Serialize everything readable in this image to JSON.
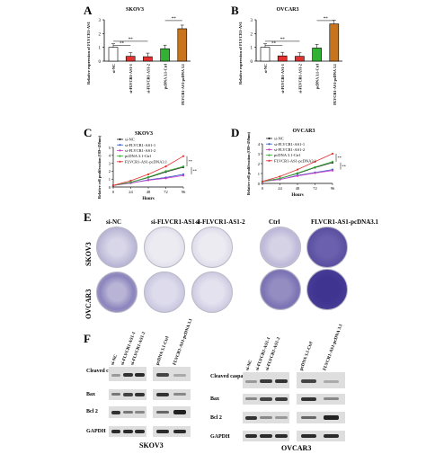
{
  "panels": {
    "A": {
      "letter": "A",
      "title": "SKOV3",
      "ylabel": "Relative expression of FLVCR1-AS1",
      "yticks": [
        "0",
        "1",
        "2",
        "3"
      ],
      "sig": [
        "**",
        "**",
        "**"
      ],
      "categories": [
        "si-NC",
        "si-FLVCR1-AS1-1",
        "si-FLVCR1-AS1-2",
        "pcDNA 3.1-Ctrl",
        "FLVCR1-AS1-pcDNA 3.1"
      ]
    },
    "B": {
      "letter": "B",
      "title": "OVCAR3",
      "ylabel": "Relative expression of FLVCR1-AS1",
      "yticks": [
        "0",
        "1",
        "2",
        "3"
      ],
      "sig": [
        "**",
        "**",
        "**"
      ],
      "categories": [
        "si-NC",
        "si-FLVCR1-AS1-1",
        "si-FLVCR1-AS1-2",
        "pcDNA 3.1-Ctrl",
        "FLVCR1-AS1-pcDNA 3.1"
      ]
    },
    "C": {
      "letter": "C",
      "title": "SKOV3",
      "ylabel": "Relative cell proliferation (OD=450nm)",
      "xlabel": "Hours",
      "yticks": [
        "0",
        "1",
        "2",
        "3",
        "4",
        "5"
      ],
      "xticks": [
        "0",
        "24",
        "48",
        "72",
        "96"
      ],
      "sig": [
        "**",
        "**"
      ],
      "legend": [
        "si-NC",
        "si-FLVCR1-AS1-1",
        "si-FLVCR1-AS1-2",
        "pcDNA 3.1-Ctrl",
        "FLVCR1-AS1-pcDNA3.1"
      ]
    },
    "D": {
      "letter": "D",
      "title": "OVCAR3",
      "ylabel": "Relative cell proliferation (OD=450nm)",
      "xlabel": "Hours",
      "yticks": [
        "0",
        "1",
        "2",
        "3",
        "4"
      ],
      "xticks": [
        "0",
        "24",
        "48",
        "72",
        "96"
      ],
      "sig": [
        "**",
        "**"
      ],
      "legend": [
        "si-NC",
        "si-FLVCR1-AS1-1",
        "si-FLVCR1-AS1-2",
        "pcDNA 3.1-Ctrl",
        "FLVCR1-AS1-pcDNA3.1"
      ]
    },
    "E": {
      "letter": "E",
      "cols": [
        "si-NC",
        "si-FLVCR1-AS1-1",
        "si-FLVCR1-AS1-2",
        "Ctrl",
        "FLVCR1-AS1-pcDNA3.1"
      ],
      "rows": [
        "SKOV3",
        "OVCAR3"
      ]
    },
    "F": {
      "letter": "F",
      "rows": [
        "Cleaved caspase 3",
        "Bax",
        "Bcl 2",
        "GAPDH"
      ],
      "lanes_left": [
        "si-NC",
        "si-FLVCR1-AS1-1",
        "si-FLVCR1-AS1-2"
      ],
      "lanes_right": [
        "pcDNA 3.1-Ctrl",
        "FLVCR1-AS1-pcDNA 3.1"
      ],
      "cell_lines": [
        "SKOV3",
        "OVCAR3"
      ]
    }
  },
  "colors": {
    "si-NC": "#ffffff",
    "si1": "#e53030",
    "si2": "#e53030",
    "ctrl": "#33b133",
    "oe": "#c8741c",
    "dish": "#5a4fa0"
  },
  "chart_data": [
    {
      "type": "bar",
      "title": "SKOV3",
      "ylabel": "Relative expression of FLVCR1-AS1",
      "ylim": [
        0,
        3
      ],
      "categories": [
        "si-NC",
        "si-FLVCR1-AS1-1",
        "si-FLVCR1-AS1-2",
        "pcDNA 3.1-Ctrl",
        "FLVCR1-AS1-pcDNA 3.1"
      ],
      "values": [
        1.0,
        0.35,
        0.32,
        0.9,
        2.35
      ]
    },
    {
      "type": "bar",
      "title": "OVCAR3",
      "ylabel": "Relative expression of FLVCR1-AS1",
      "ylim": [
        0,
        3
      ],
      "categories": [
        "si-NC",
        "si-FLVCR1-AS1-1",
        "si-FLVCR1-AS1-2",
        "pcDNA 3.1-Ctrl",
        "FLVCR1-AS1-pcDNA 3.1"
      ],
      "values": [
        1.0,
        0.38,
        0.35,
        0.95,
        2.7
      ]
    },
    {
      "type": "line",
      "title": "SKOV3",
      "xlabel": "Hours",
      "ylabel": "Relative cell proliferation (OD=450nm)",
      "x": [
        0,
        24,
        48,
        72,
        96
      ],
      "ylim": [
        0,
        5
      ],
      "series": [
        {
          "name": "si-NC",
          "values": [
            0.2,
            0.6,
            1.2,
            1.9,
            2.5
          ]
        },
        {
          "name": "si-FLVCR1-AS1-1",
          "values": [
            0.2,
            0.5,
            0.9,
            1.2,
            1.6
          ]
        },
        {
          "name": "si-FLVCR1-AS1-2",
          "values": [
            0.2,
            0.5,
            0.85,
            1.1,
            1.45
          ]
        },
        {
          "name": "pcDNA 3.1-Ctrl",
          "values": [
            0.2,
            0.6,
            1.25,
            2.0,
            2.6
          ]
        },
        {
          "name": "FLVCR1-AS1-pcDNA3.1",
          "values": [
            0.2,
            0.8,
            1.6,
            2.6,
            3.9
          ]
        }
      ]
    },
    {
      "type": "line",
      "title": "OVCAR3",
      "xlabel": "Hours",
      "ylabel": "Relative cell proliferation (OD=450nm)",
      "x": [
        0,
        24,
        48,
        72,
        96
      ],
      "ylim": [
        0,
        4
      ],
      "series": [
        {
          "name": "si-NC",
          "values": [
            0.2,
            0.5,
            1.0,
            1.6,
            2.1
          ]
        },
        {
          "name": "si-FLVCR1-AS1-1",
          "values": [
            0.2,
            0.4,
            0.8,
            1.1,
            1.4
          ]
        },
        {
          "name": "si-FLVCR1-AS1-2",
          "values": [
            0.2,
            0.4,
            0.75,
            1.05,
            1.3
          ]
        },
        {
          "name": "pcDNA 3.1-Ctrl",
          "values": [
            0.2,
            0.5,
            1.05,
            1.65,
            2.2
          ]
        },
        {
          "name": "FLVCR1-AS1-pcDNA3.1",
          "values": [
            0.2,
            0.7,
            1.4,
            2.2,
            3.0
          ]
        }
      ]
    }
  ]
}
